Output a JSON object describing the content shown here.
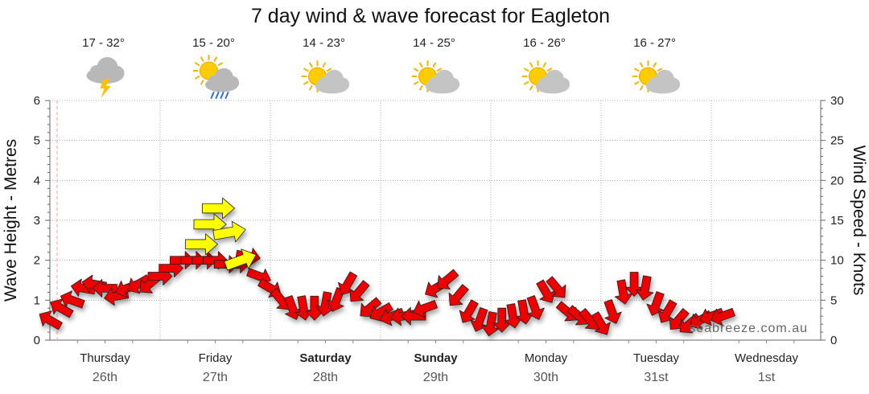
{
  "chart_data": {
    "type": "line",
    "title": "7 day wind & wave forecast for Eagleton",
    "ylabel_left": "Wave Height - Metres",
    "ylabel_right": "Wind Speed - Knots",
    "ylim_left": [
      0,
      6
    ],
    "ylim_right": [
      0,
      30
    ],
    "yticks_left": [
      "0",
      "1",
      "2",
      "3",
      "4",
      "5",
      "6"
    ],
    "yticks_right": [
      "0",
      "5",
      "10",
      "15",
      "20",
      "25",
      "30"
    ],
    "grid": true,
    "days": [
      {
        "name": "Thursday",
        "date": "26th",
        "bold": false,
        "temps": "17 - 32°",
        "weather": "storm-cloud-icon"
      },
      {
        "name": "Friday",
        "date": "27th",
        "bold": false,
        "temps": "15 - 20°",
        "weather": "sun-rain-cloud-icon"
      },
      {
        "name": "Saturday",
        "date": "28th",
        "bold": true,
        "temps": "14 - 23°",
        "weather": "partly-cloudy-icon"
      },
      {
        "name": "Sunday",
        "date": "29th",
        "bold": true,
        "temps": "14 - 25°",
        "weather": "partly-cloudy-icon"
      },
      {
        "name": "Monday",
        "date": "30th",
        "bold": false,
        "temps": "16 - 26°",
        "weather": "partly-cloudy-icon"
      },
      {
        "name": "Tuesday",
        "date": "31st",
        "bold": false,
        "temps": "16 - 27°",
        "weather": "partly-cloudy-icon"
      },
      {
        "name": "Wednesday",
        "date": "1st",
        "bold": false,
        "temps": "",
        "weather": ""
      }
    ],
    "series": [
      {
        "name": "Wind",
        "unit": "knots",
        "x_day_offset": [
          0.0,
          0.1,
          0.2,
          0.3,
          0.4,
          0.5,
          0.6,
          0.7,
          0.8,
          0.9,
          1.0,
          1.1,
          1.2,
          1.3,
          1.4,
          1.5,
          1.6,
          1.7,
          1.8,
          1.9,
          2.0,
          2.1,
          2.2,
          2.3,
          2.4,
          2.5,
          2.6,
          2.7,
          2.8,
          2.9,
          3.0,
          3.1,
          3.2,
          3.3,
          3.4,
          3.5,
          3.6,
          3.7,
          3.8,
          3.9,
          4.0,
          4.1,
          4.2,
          4.3,
          4.4,
          4.5,
          4.6,
          4.7,
          4.8,
          4.9,
          5.0,
          5.1,
          5.2,
          5.3,
          5.4,
          5.5,
          5.6,
          5.7,
          5.8,
          5.9,
          6.0,
          6.1
        ],
        "values": [
          2.5,
          4.0,
          5.0,
          6.5,
          7.0,
          6.5,
          5.5,
          6.5,
          7.0,
          7.0,
          8.0,
          9.0,
          10.0,
          10.0,
          10.0,
          10.0,
          9.5,
          9.5,
          10.5,
          8.0,
          6.5,
          5.0,
          4.0,
          4.0,
          4.0,
          4.5,
          5.0,
          7.0,
          6.0,
          4.0,
          3.5,
          3.0,
          3.0,
          3.0,
          4.0,
          6.5,
          7.5,
          5.5,
          3.5,
          2.5,
          2.0,
          2.5,
          3.0,
          3.5,
          4.0,
          6.0,
          6.5,
          3.5,
          3.0,
          2.5,
          2.0,
          3.5,
          6.0,
          7.0,
          6.5,
          4.5,
          3.5,
          2.5,
          2.0,
          2.5,
          3.0,
          3.0
        ],
        "directions_deg": [
          300,
          300,
          290,
          280,
          280,
          270,
          260,
          250,
          240,
          230,
          90,
          90,
          90,
          90,
          90,
          90,
          90,
          90,
          100,
          110,
          120,
          140,
          160,
          170,
          180,
          190,
          200,
          210,
          220,
          230,
          240,
          250,
          260,
          270,
          250,
          240,
          230,
          220,
          210,
          200,
          190,
          180,
          170,
          170,
          160,
          150,
          140,
          130,
          130,
          140,
          150,
          160,
          170,
          180,
          190,
          200,
          210,
          220,
          230,
          240,
          250,
          250
        ]
      },
      {
        "name": "Swell",
        "unit": "metres",
        "x_day_offset": [
          0.95,
          1.1,
          1.25,
          1.45,
          1.65
        ],
        "values": [
          2.4,
          2.9,
          3.3,
          2.7,
          2.0
        ],
        "directions_deg": [
          90,
          90,
          90,
          80,
          70
        ]
      }
    ]
  },
  "watermark": "seabreeze.com.au",
  "colors": {
    "wind_arrow": "#ee0000",
    "swell_arrow": "#ffff00",
    "grid": "#999999",
    "current_time_line": "#ff9999"
  }
}
